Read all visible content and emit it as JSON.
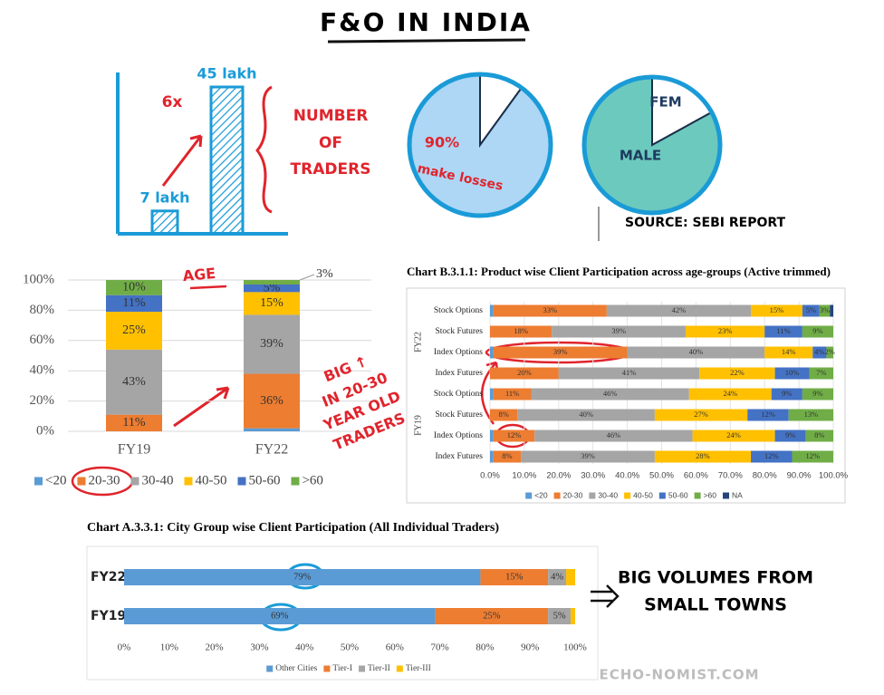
{
  "title": "F&O IN INDIA",
  "source": "SOURCE: SEBI REPORT",
  "watermark": "ECHO-NOMIST.COM",
  "chart_data": [
    {
      "type": "bar",
      "categories": [
        null,
        null
      ],
      "values": [
        7,
        45
      ],
      "value_labels": [
        "7 lakh",
        "45 lakh"
      ],
      "color": "#1a9bd7",
      "annotations": [
        "6x",
        "NUMBER",
        "OF",
        "TRADERS"
      ]
    },
    {
      "type": "pie",
      "categories": [
        null,
        "make losses"
      ],
      "values": [
        10,
        90
      ],
      "value_labels": [
        null,
        "90%"
      ],
      "colors": [
        "#ffffff",
        "#aed6f5"
      ]
    },
    {
      "type": "pie",
      "categories": [
        "FEM",
        "MALE"
      ],
      "values": [
        17,
        83
      ],
      "colors": [
        "#ffffff",
        "#6cc9bd"
      ]
    },
    {
      "type": "stacked_bar",
      "categories": [
        "FY19",
        "FY22"
      ],
      "series": [
        {
          "name": "<20",
          "color": "#5b9bd5",
          "values": [
            0,
            2
          ]
        },
        {
          "name": "20-30",
          "color": "#ed7d31",
          "values": [
            11,
            36
          ],
          "value_labels": [
            "11%",
            "36%"
          ]
        },
        {
          "name": "30-40",
          "color": "#a5a5a5",
          "values": [
            43,
            39
          ],
          "value_labels": [
            "43%",
            "39%"
          ]
        },
        {
          "name": "40-50",
          "color": "#ffc000",
          "values": [
            25,
            15
          ],
          "value_labels": [
            "25%",
            "15%"
          ]
        },
        {
          "name": "50-60",
          "color": "#4472c4",
          "values": [
            11,
            5
          ],
          "value_labels": [
            "11%",
            "5%"
          ]
        },
        {
          "name": ">60",
          "color": "#70ad47",
          "values": [
            10,
            3
          ],
          "value_labels": [
            "10%",
            "3%"
          ]
        }
      ],
      "ylim": [
        0,
        100
      ],
      "yticks": [
        {
          "value": 0,
          "label": "0%"
        },
        {
          "value": 20,
          "label": "20%"
        },
        {
          "value": 40,
          "label": "40%"
        },
        {
          "value": 60,
          "label": "60%"
        },
        {
          "value": 80,
          "label": "80%"
        },
        {
          "value": 100,
          "label": "100%"
        }
      ],
      "grid": true,
      "legend": "bottom",
      "annotations": [
        "AGE",
        "BIG ↑",
        "IN 20-30",
        "YEAR OLD",
        "TRADERS"
      ]
    },
    {
      "type": "stacked_barh",
      "title": "Chart B.3.1.1: Product wise Client Participation across age-groups (Active trimmed)",
      "categories": [
        "Stock Options",
        "Stock Futures",
        "Index Options",
        "Index Futures",
        "Stock Options",
        "Stock Futures",
        "Index Options",
        "Index Futures"
      ],
      "group_labels": [
        "FY22",
        "FY19"
      ],
      "series": [
        {
          "name": "<20",
          "color": "#5b9bd5",
          "values": [
            1,
            0,
            1,
            0,
            1,
            0,
            1,
            1
          ]
        },
        {
          "name": "20-30",
          "color": "#ed7d31",
          "values": [
            33,
            18,
            39,
            20,
            11,
            8,
            12,
            8
          ],
          "value_labels": [
            "33%",
            "18%",
            "39%",
            "20%",
            "11%",
            "8%",
            "12%",
            "8%"
          ]
        },
        {
          "name": "30-40",
          "color": "#a5a5a5",
          "values": [
            42,
            39,
            40,
            41,
            46,
            40,
            46,
            39
          ],
          "value_labels": [
            "42%",
            "39%",
            "40%",
            "41%",
            "46%",
            "40%",
            "46%",
            "39%"
          ]
        },
        {
          "name": "40-50",
          "color": "#ffc000",
          "values": [
            15,
            23,
            14,
            22,
            24,
            27,
            24,
            28
          ],
          "value_labels": [
            "15%",
            "23%",
            "14%",
            "22%",
            "24%",
            "27%",
            "24%",
            "28%"
          ]
        },
        {
          "name": "50-60",
          "color": "#4472c4",
          "values": [
            5,
            11,
            4,
            10,
            9,
            12,
            9,
            12
          ],
          "value_labels": [
            "5%",
            "11%",
            "4%",
            "10%",
            "9%",
            "12%",
            "9%",
            "12%"
          ]
        },
        {
          "name": ">60",
          "color": "#70ad47",
          "values": [
            3,
            9,
            2,
            7,
            9,
            13,
            8,
            12
          ],
          "value_labels": [
            "3%",
            "9%",
            "2%",
            "7%",
            "9%",
            "13%",
            "8%",
            "12%"
          ]
        },
        {
          "name": "NA",
          "color": "#264478",
          "values": [
            1,
            0,
            0,
            0,
            0,
            0,
            0,
            0
          ]
        }
      ],
      "xlim": [
        0,
        100
      ],
      "xticks": [
        {
          "value": 0,
          "label": "0.0%"
        },
        {
          "value": 10,
          "label": "10.0%"
        },
        {
          "value": 20,
          "label": "20.0%"
        },
        {
          "value": 30,
          "label": "30.0%"
        },
        {
          "value": 40,
          "label": "40.0%"
        },
        {
          "value": 50,
          "label": "50.0%"
        },
        {
          "value": 60,
          "label": "60.0%"
        },
        {
          "value": 70,
          "label": "70.0%"
        },
        {
          "value": 80,
          "label": "80.0%"
        },
        {
          "value": 90,
          "label": "90.0%"
        },
        {
          "value": 100,
          "label": "100.0%"
        }
      ],
      "grid": true,
      "legend": "bottom"
    },
    {
      "type": "stacked_barh",
      "title": "Chart A.3.3.1: City Group wise Client Participation (All Individual Traders)",
      "categories": [
        "FY22",
        "FY19"
      ],
      "series": [
        {
          "name": "Other Cities",
          "color": "#5b9bd5",
          "values": [
            79,
            69
          ],
          "value_labels": [
            "79%",
            "69%"
          ]
        },
        {
          "name": "Tier-I",
          "color": "#ed7d31",
          "values": [
            15,
            25
          ],
          "value_labels": [
            "15%",
            "25%"
          ]
        },
        {
          "name": "Tier-II",
          "color": "#a5a5a5",
          "values": [
            4,
            5
          ],
          "value_labels": [
            "4%",
            "5%"
          ]
        },
        {
          "name": "Tier-III",
          "color": "#ffc000",
          "values": [
            2,
            1
          ]
        }
      ],
      "xlim": [
        0,
        100
      ],
      "xticks": [
        {
          "value": 0,
          "label": "0%"
        },
        {
          "value": 10,
          "label": "10%"
        },
        {
          "value": 20,
          "label": "20%"
        },
        {
          "value": 30,
          "label": "30%"
        },
        {
          "value": 40,
          "label": "40%"
        },
        {
          "value": 50,
          "label": "50%"
        },
        {
          "value": 60,
          "label": "60%"
        },
        {
          "value": 70,
          "label": "70%"
        },
        {
          "value": 80,
          "label": "80%"
        },
        {
          "value": 90,
          "label": "90%"
        },
        {
          "value": 100,
          "label": "100%"
        }
      ],
      "grid": false,
      "legend": "bottom",
      "annotations": [
        "BIG VOLUMES FROM",
        "SMALL TOWNS"
      ]
    }
  ]
}
